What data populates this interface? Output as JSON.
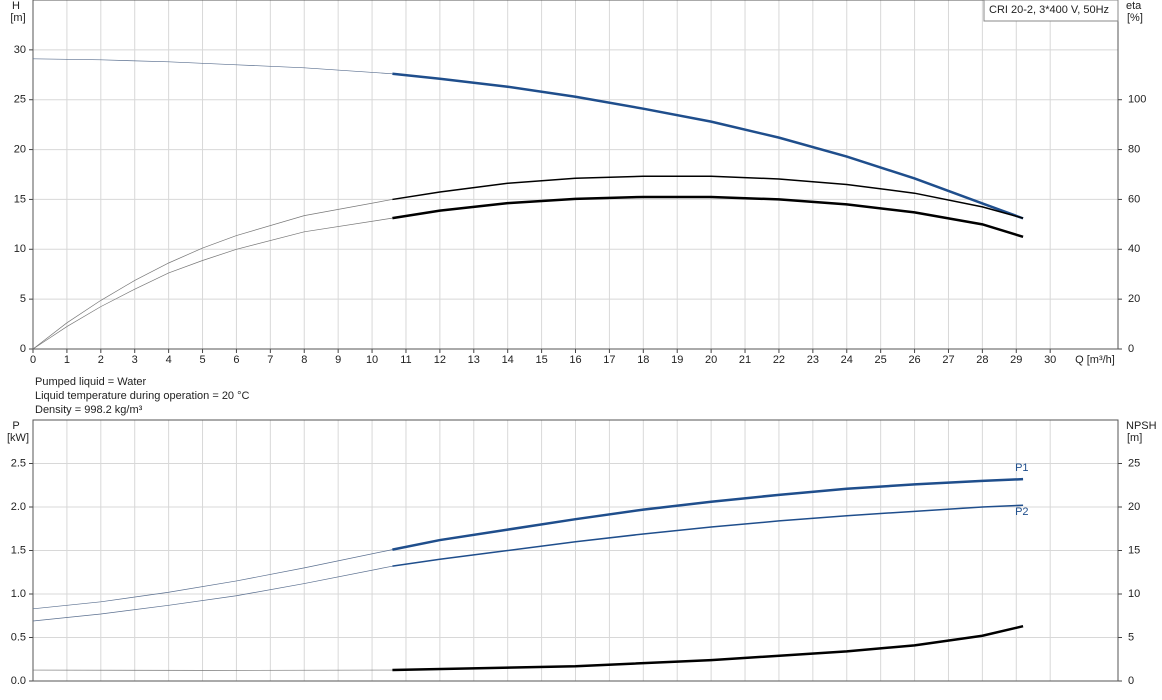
{
  "chart_data": [
    {
      "type": "line",
      "ylabel": "H",
      "ylabel_unit": "[m]",
      "y2label": "eta",
      "y2label_unit": "[%]",
      "xlabel": "Q [m³/h]",
      "info": "CRI 20-2, 3*400 V, 50Hz",
      "xlim": [
        0,
        32
      ],
      "xticks": [
        0,
        1,
        2,
        3,
        4,
        5,
        6,
        7,
        8,
        9,
        10,
        11,
        12,
        13,
        14,
        15,
        16,
        17,
        18,
        19,
        20,
        21,
        22,
        23,
        24,
        25,
        26,
        27,
        28,
        29,
        30
      ],
      "ylim": [
        0,
        35
      ],
      "yticks": [
        0,
        5,
        10,
        15,
        20,
        25,
        30
      ],
      "y2lim": [
        0,
        140
      ],
      "y2ticks": [
        0,
        20,
        40,
        60,
        80,
        100
      ],
      "grid": true,
      "series": [
        {
          "color": "#5a6f8f",
          "width": 0.7,
          "x": [
            0,
            2,
            4,
            6,
            8,
            10.6
          ],
          "values": [
            29.1,
            29.0,
            28.8,
            28.5,
            28.2,
            27.6
          ]
        },
        {
          "color": "#1f4e8c",
          "width": 2.5,
          "x": [
            10.6,
            12,
            14,
            16,
            18,
            20,
            22,
            24,
            26,
            28,
            29.2
          ],
          "values": [
            27.6,
            27.1,
            26.3,
            25.3,
            24.1,
            22.8,
            21.2,
            19.3,
            17.1,
            14.6,
            13.1
          ]
        },
        {
          "color": "#777777",
          "width": 0.7,
          "axis": "y2",
          "x": [
            0,
            1,
            2,
            3,
            4,
            5,
            6,
            8,
            10.6
          ],
          "values": [
            0,
            10.5,
            19.5,
            27.5,
            34.5,
            40.5,
            45.5,
            53.5,
            60
          ]
        },
        {
          "color": "#000000",
          "width": 1.5,
          "axis": "y2",
          "x": [
            10.6,
            12,
            14,
            16,
            18,
            20,
            22,
            24,
            26,
            28,
            29.2
          ],
          "values": [
            60,
            63,
            66.5,
            68.5,
            69.3,
            69.3,
            68.2,
            66,
            62.5,
            57,
            52.5
          ]
        },
        {
          "color": "#777777",
          "width": 0.7,
          "axis": "y2",
          "x": [
            0,
            1,
            2,
            3,
            4,
            5,
            6,
            8,
            10.6
          ],
          "values": [
            0,
            9,
            17,
            24,
            30.5,
            35.5,
            40,
            47,
            52.5
          ]
        },
        {
          "color": "#000000",
          "width": 2.5,
          "axis": "y2",
          "x": [
            10.6,
            12,
            14,
            16,
            18,
            20,
            22,
            24,
            26,
            28,
            29.2
          ],
          "values": [
            52.5,
            55.5,
            58.5,
            60.2,
            61,
            61,
            60,
            58,
            54.8,
            50,
            45
          ]
        }
      ],
      "notes": [
        "Pumped liquid = Water",
        "Liquid temperature during operation = 20 °C",
        "Density = 998.2 kg/m³"
      ]
    },
    {
      "type": "line",
      "ylabel": "P",
      "ylabel_unit": "[kW]",
      "y2label": "NPSH",
      "y2label_unit": "[m]",
      "xlim": [
        0,
        32
      ],
      "ylim": [
        0,
        3
      ],
      "yticks": [
        {
          "value": 0,
          "label": "0.0"
        },
        0.5,
        {
          "value": 1,
          "label": "1.0"
        },
        1.5,
        {
          "value": 2,
          "label": "2.0"
        },
        2.5
      ],
      "y2lim": [
        0,
        30
      ],
      "y2ticks": [
        0,
        5,
        10,
        15,
        20,
        25
      ],
      "grid": true,
      "series": [
        {
          "color": "#5a6f8f",
          "width": 0.7,
          "x": [
            0,
            2,
            4,
            6,
            8,
            10.6
          ],
          "values": [
            0.83,
            0.91,
            1.02,
            1.15,
            1.3,
            1.51
          ]
        },
        {
          "name": "P1",
          "color": "#1f4e8c",
          "width": 2.5,
          "x": [
            10.6,
            12,
            14,
            16,
            18,
            20,
            22,
            24,
            26,
            28,
            29.2
          ],
          "values": [
            1.51,
            1.62,
            1.74,
            1.86,
            1.97,
            2.06,
            2.14,
            2.21,
            2.26,
            2.3,
            2.32
          ]
        },
        {
          "color": "#5a6f8f",
          "width": 0.7,
          "x": [
            0,
            2,
            4,
            6,
            8,
            10.6
          ],
          "values": [
            0.69,
            0.77,
            0.87,
            0.98,
            1.12,
            1.32
          ]
        },
        {
          "name": "P2",
          "color": "#1f4e8c",
          "width": 1.5,
          "x": [
            10.6,
            12,
            14,
            16,
            18,
            20,
            22,
            24,
            26,
            28,
            29.2
          ],
          "values": [
            1.32,
            1.4,
            1.5,
            1.6,
            1.69,
            1.77,
            1.84,
            1.9,
            1.95,
            2.0,
            2.02
          ]
        },
        {
          "color": "#777777",
          "width": 0.7,
          "axis": "y2",
          "x": [
            0,
            5,
            10.6
          ],
          "values": [
            1.26,
            1.22,
            1.26
          ]
        },
        {
          "color": "#000000",
          "width": 2.5,
          "axis": "y2",
          "x": [
            10.6,
            16,
            20,
            24,
            26,
            28,
            29.2
          ],
          "values": [
            1.26,
            1.7,
            2.4,
            3.4,
            4.1,
            5.2,
            6.3
          ]
        }
      ]
    }
  ]
}
